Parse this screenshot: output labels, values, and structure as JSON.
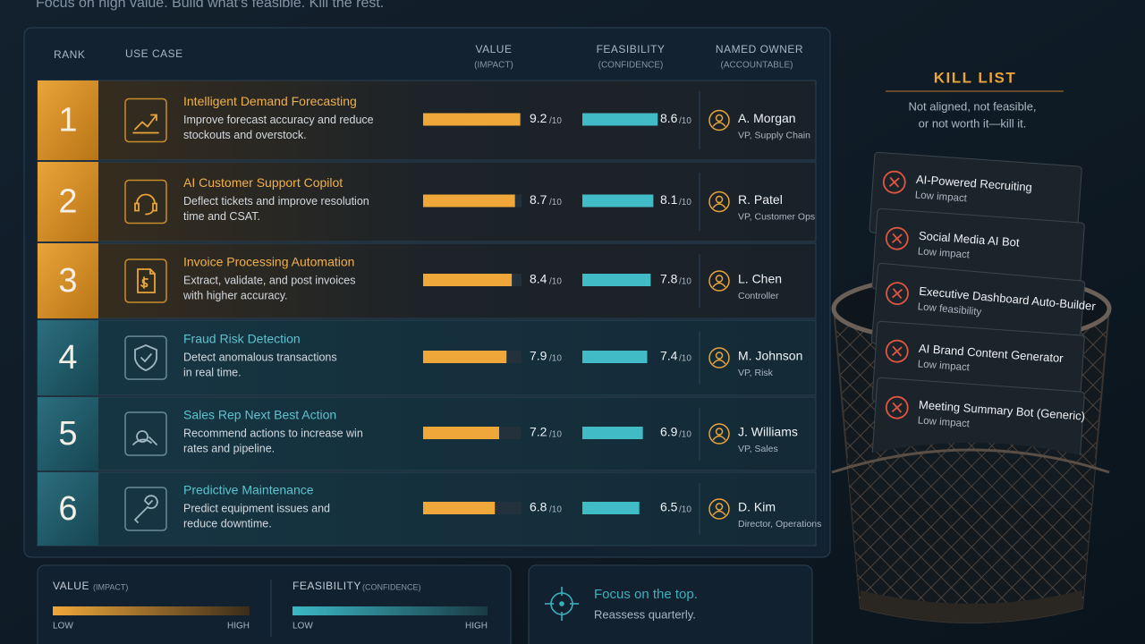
{
  "header": {
    "subtitle": "Focus on high value. Build what’s feasible. Kill the rest."
  },
  "table": {
    "headers": {
      "rank": "RANK",
      "use_case": "USE CASE",
      "value": "VALUE",
      "value_sub": "(IMPACT)",
      "feasibility": "FEASIBILITY",
      "feasibility_sub": "(CONFIDENCE)",
      "owner": "NAMED OWNER",
      "owner_sub": "(ACCOUNTABLE)"
    },
    "score_scale": {
      "value": 10,
      "label": "/10"
    },
    "rows": [
      {
        "rank": 1,
        "title": "Intelligent Demand Forecasting",
        "description": [
          "Improve forecast accuracy and reduce",
          "stockouts and overstock."
        ],
        "value": 9.2,
        "feasibility": 8.6,
        "owner": "A. Morgan",
        "role": "VP, Supply Chain"
      },
      {
        "rank": 2,
        "title": "AI Customer Support Copilot",
        "description": [
          "Deflect tickets and improve resolution",
          "time and CSAT."
        ],
        "value": 8.7,
        "feasibility": 8.1,
        "owner": "R. Patel",
        "role": "VP, Customer Ops"
      },
      {
        "rank": 3,
        "title": "Invoice Processing Automation",
        "description": [
          "Extract, validate, and post invoices",
          "with higher accuracy."
        ],
        "value": 8.4,
        "feasibility": 7.8,
        "owner": "L. Chen",
        "role": "Controller"
      },
      {
        "rank": 4,
        "title": "Fraud Risk Detection",
        "description": [
          "Detect anomalous transactions",
          "in real time."
        ],
        "value": 7.9,
        "feasibility": 7.4,
        "owner": "M. Johnson",
        "role": "VP, Risk"
      },
      {
        "rank": 5,
        "title": "Sales Rep Next Best Action",
        "description": [
          "Recommend actions to increase win",
          "rates and pipeline."
        ],
        "value": 7.2,
        "feasibility": 6.9,
        "owner": "J. Williams",
        "role": "VP, Sales"
      },
      {
        "rank": 6,
        "title": "Predictive Maintenance",
        "description": [
          "Predict equipment issues and",
          "reduce downtime."
        ],
        "value": 6.8,
        "feasibility": 6.5,
        "owner": "D. Kim",
        "role": "Director, Operations"
      }
    ]
  },
  "kill_list": {
    "title": "KILL LIST",
    "subtitle": [
      "Not aligned, not feasible,",
      "or not worth it—kill it."
    ],
    "items": [
      {
        "name": "AI-Powered Recruiting",
        "reason": "Low impact"
      },
      {
        "name": "Social Media AI Bot",
        "reason": "Low impact"
      },
      {
        "name": "Executive Dashboard Auto-Builder",
        "reason": "Low feasibility"
      },
      {
        "name": "AI Brand Content Generator",
        "reason": "Low impact"
      },
      {
        "name": "Meeting Summary Bot (Generic)",
        "reason": "Low impact"
      }
    ]
  },
  "legend": {
    "value": {
      "label": "VALUE",
      "sub": "(IMPACT)",
      "low": "LOW",
      "high": "HIGH"
    },
    "feasibility": {
      "label": "FEASIBILITY",
      "sub": "(CONFIDENCE)",
      "low": "LOW",
      "high": "HIGH"
    }
  },
  "footer": {
    "headline": "Focus on the top.",
    "note": "Reassess quarterly."
  }
}
